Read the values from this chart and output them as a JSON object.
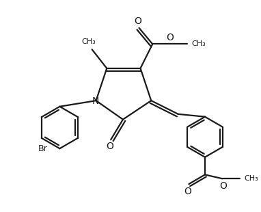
{
  "background_color": "#ffffff",
  "line_color": "#1a1a1a",
  "line_width": 1.6,
  "font_size": 9,
  "figsize": [
    3.82,
    3.1
  ],
  "dpi": 100,
  "xlim": [
    0,
    9.5
  ],
  "ylim": [
    0,
    7.7
  ]
}
